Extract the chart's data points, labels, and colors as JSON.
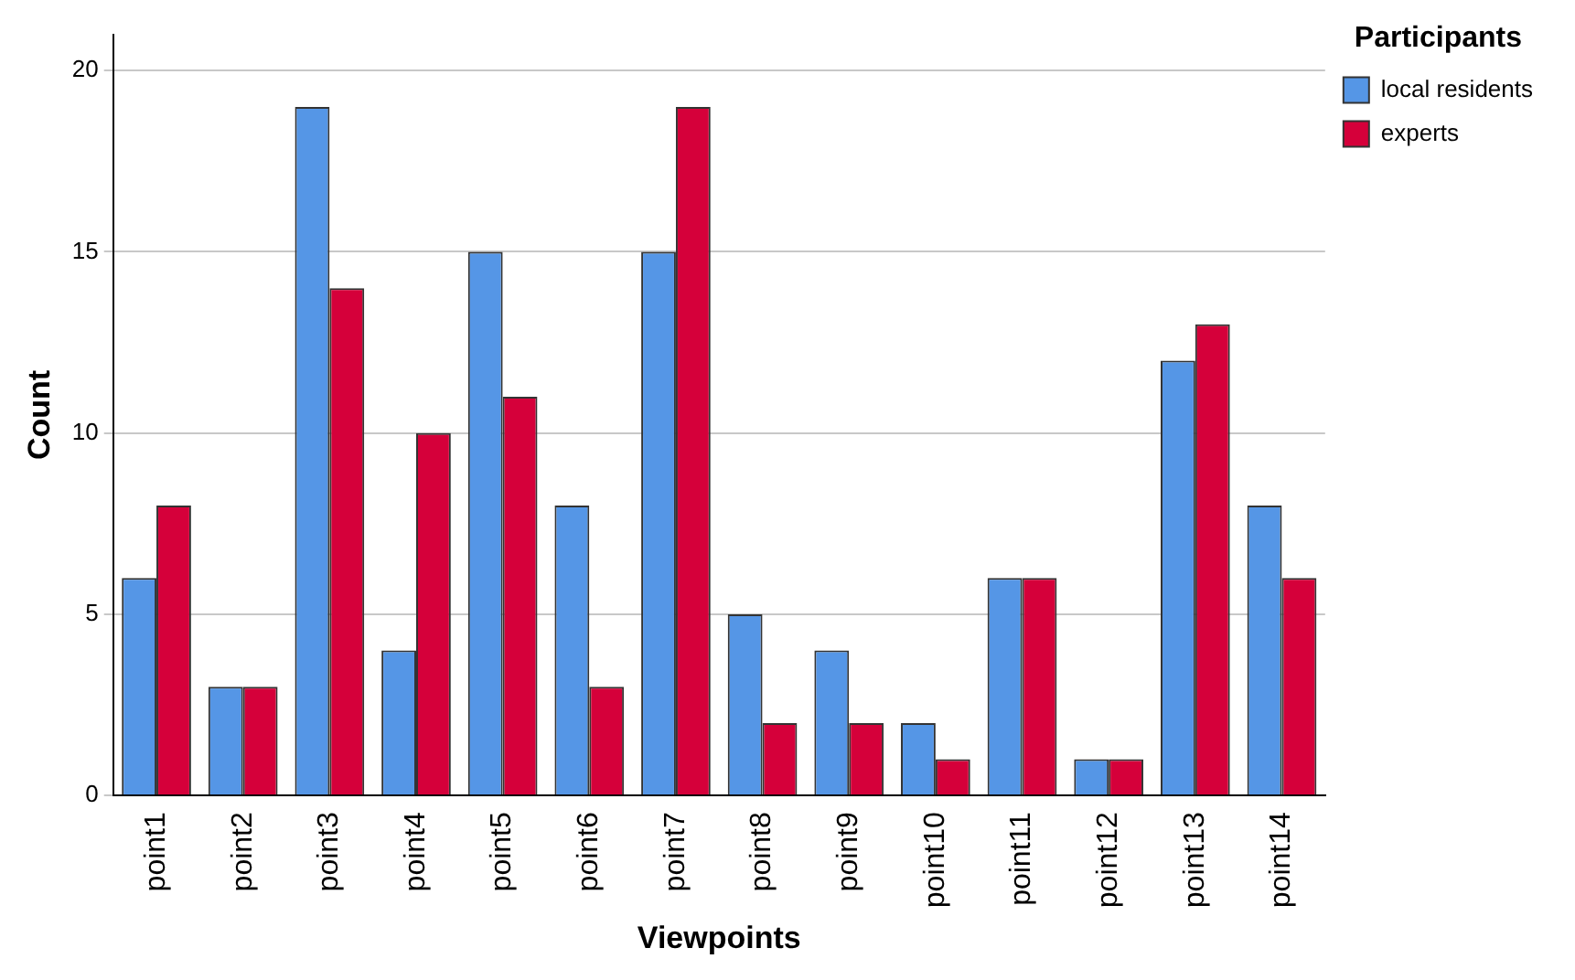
{
  "chart_data": {
    "type": "bar",
    "xlabel": "Viewpoints",
    "ylabel": "Count",
    "legend_title": "Participants",
    "legend": "top right",
    "categories": [
      "point1",
      "point2",
      "point3",
      "point4",
      "point5",
      "point6",
      "point7",
      "point8",
      "point9",
      "point10",
      "point11",
      "point12",
      "point13",
      "point14"
    ],
    "series": [
      {
        "name": "local residents",
        "color": "#5596e6",
        "values": [
          6,
          3,
          19,
          4,
          15,
          8,
          15,
          5,
          4,
          2,
          6,
          1,
          12,
          8
        ]
      },
      {
        "name": "experts",
        "color": "#d5003a",
        "values": [
          8,
          3,
          14,
          10,
          11,
          3,
          19,
          2,
          2,
          1,
          6,
          1,
          13,
          6
        ]
      }
    ],
    "ylim": [
      0,
      21
    ],
    "yticks": [
      0,
      5,
      10,
      15,
      20
    ],
    "grid": "y"
  }
}
